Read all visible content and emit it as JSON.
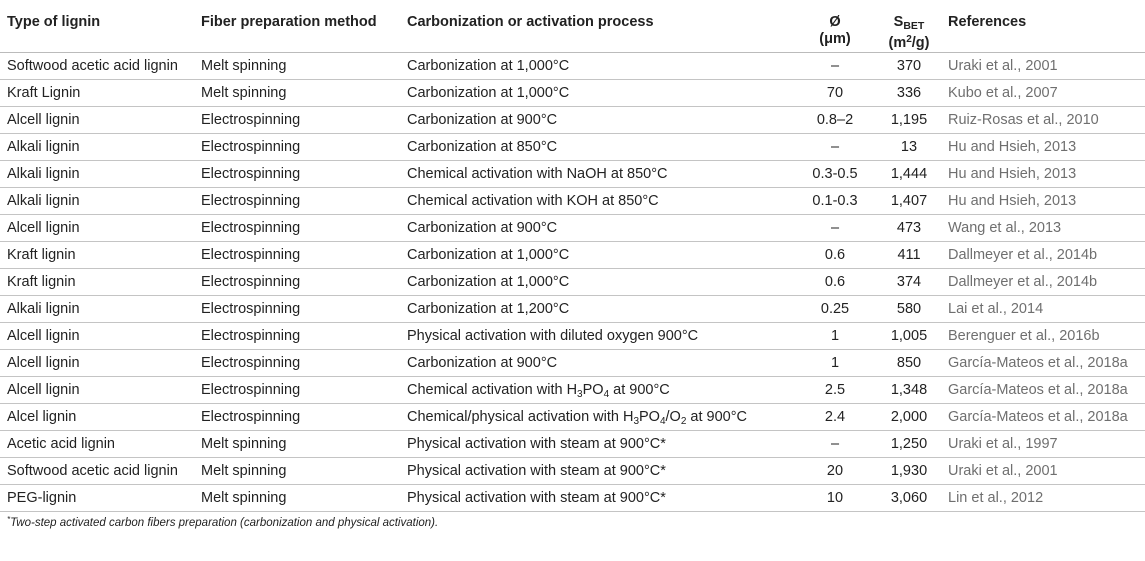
{
  "table": {
    "headers": {
      "type": "Type of lignin",
      "fiber": "Fiber preparation method",
      "process": "Carbonization or activation process",
      "diameter_symbol": "Ø",
      "diameter_unit": "(μm)",
      "sbet_s": "S",
      "sbet_sub": "BET",
      "sbet_unit_a": "(m",
      "sbet_unit_sup": "2",
      "sbet_unit_b": "/g)",
      "references": "References"
    },
    "rows": [
      {
        "type": "Softwood acetic acid lignin",
        "fiber": "Melt spinning",
        "process": "Carbonization at 1,000°C",
        "diameter": "–",
        "sbet": "370",
        "ref": "Uraki et al., 2001"
      },
      {
        "type": "Kraft Lignin",
        "fiber": "Melt spinning",
        "process": "Carbonization at 1,000°C",
        "diameter": "70",
        "sbet": "336",
        "ref": "Kubo et al., 2007"
      },
      {
        "type": "Alcell lignin",
        "fiber": "Electrospinning",
        "process": "Carbonization at 900°C",
        "diameter": "0.8–2",
        "sbet": "1,195",
        "ref": "Ruiz-Rosas et al., 2010"
      },
      {
        "type": "Alkali lignin",
        "fiber": "Electrospinning",
        "process": "Carbonization at 850°C",
        "diameter": "–",
        "sbet": "13",
        "ref": "Hu and Hsieh, 2013"
      },
      {
        "type": "Alkali lignin",
        "fiber": "Electrospinning",
        "process": "Chemical activation with NaOH at 850°C",
        "diameter": "0.3-0.5",
        "sbet": "1,444",
        "ref": "Hu and Hsieh, 2013"
      },
      {
        "type": "Alkali lignin",
        "fiber": "Electrospinning",
        "process": "Chemical activation with KOH at 850°C",
        "diameter": "0.1-0.3",
        "sbet": "1,407",
        "ref": "Hu and Hsieh, 2013"
      },
      {
        "type": "Alcell lignin",
        "fiber": "Electrospinning",
        "process": "Carbonization at 900°C",
        "diameter": "–",
        "sbet": "473",
        "ref": "Wang et al., 2013"
      },
      {
        "type": "Kraft lignin",
        "fiber": "Electrospinning",
        "process": "Carbonization at 1,000°C",
        "diameter": "0.6",
        "sbet": "411",
        "ref": "Dallmeyer et al., 2014b"
      },
      {
        "type": "Kraft lignin",
        "fiber": "Electrospinning",
        "process": "Carbonization at 1,000°C",
        "diameter": "0.6",
        "sbet": "374",
        "ref": "Dallmeyer et al., 2014b"
      },
      {
        "type": "Alkali lignin",
        "fiber": "Electrospinning",
        "process": "Carbonization at 1,200°C",
        "diameter": "0.25",
        "sbet": "580",
        "ref": "Lai et al., 2014"
      },
      {
        "type": "Alcell lignin",
        "fiber": "Electrospinning",
        "process": "Physical activation with diluted oxygen 900°C",
        "diameter": "1",
        "sbet": "1,005",
        "ref": "Berenguer et al., 2016b"
      },
      {
        "type": "Alcell lignin",
        "fiber": "Electrospinning",
        "process": "Carbonization at 900°C",
        "diameter": "1",
        "sbet": "850",
        "ref": "García-Mateos et al., 2018a"
      },
      {
        "type": "Alcell lignin",
        "fiber": "Electrospinning",
        "process_a": "Chemical activation with H",
        "process_sub": "3",
        "process_b": "PO",
        "process_sub2": "4",
        "process_c": " at 900°C",
        "diameter": "2.5",
        "sbet": "1,348",
        "ref": "García-Mateos et al., 2018a"
      },
      {
        "type": "Alcel lignin",
        "fiber": "Electrospinning",
        "process_a": "Chemical/physical activation with H",
        "process_sub": "3",
        "process_b": "PO",
        "process_sub2": "4",
        "process_c": "/O",
        "process_sub3": "2",
        "process_d": " at 900°C",
        "diameter": "2.4",
        "sbet": "2,000",
        "ref": "García-Mateos et al., 2018a"
      },
      {
        "type": "Acetic acid lignin",
        "fiber": "Melt spinning",
        "process": "Physical activation with steam at 900°C*",
        "diameter": "–",
        "sbet": "1,250",
        "ref": "Uraki et al., 1997"
      },
      {
        "type": "Softwood acetic acid lignin",
        "fiber": "Melt spinning",
        "process": "Physical activation with steam at 900°C*",
        "diameter": "20",
        "sbet": "1,930",
        "ref": "Uraki et al., 2001"
      },
      {
        "type": "PEG-lignin",
        "fiber": "Melt spinning",
        "process": "Physical activation with steam at 900°C*",
        "diameter": "10",
        "sbet": "3,060",
        "ref": "Lin et al., 2012"
      }
    ]
  },
  "footnote": {
    "mark": "*",
    "text": "Two-step activated carbon fibers preparation (carbonization and physical activation)."
  }
}
